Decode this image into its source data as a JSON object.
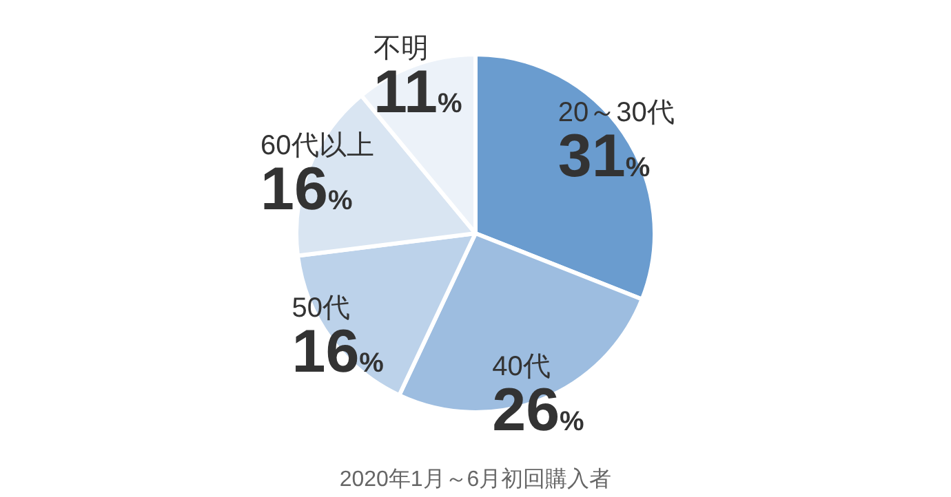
{
  "chart_data": {
    "type": "pie",
    "categories": [
      "20～30代",
      "40代",
      "50代",
      "60代以上",
      "不明"
    ],
    "values": [
      31,
      26,
      16,
      16,
      11
    ],
    "colors": [
      "#6a9ccf",
      "#9dbde0",
      "#bcd2ea",
      "#d9e5f2",
      "#ecf2f9"
    ],
    "value_labels": [
      "31%",
      "26%",
      "16%",
      "16%",
      "11%"
    ],
    "legend": false,
    "annotations": [
      "2020年1月～6月初回購入者"
    ]
  }
}
